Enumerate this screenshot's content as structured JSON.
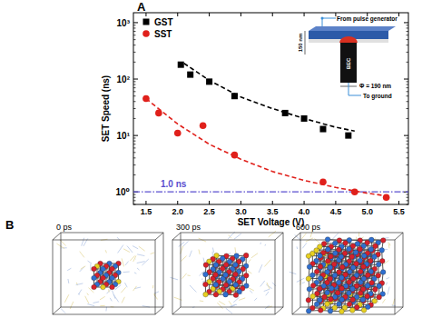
{
  "chart_data": {
    "type": "scatter",
    "title": "A",
    "x_label": "SET Voltage (V)",
    "y_label": "SET Speed (ns)",
    "log": "y",
    "legend": "top-left",
    "xlim": [
      1.3,
      5.65
    ],
    "xticks": [
      1.5,
      {
        "value": 2,
        "label": "2.0"
      },
      2.5,
      {
        "value": 3,
        "label": "3.0"
      },
      3.5,
      {
        "value": 4,
        "label": "4.0"
      },
      4.5,
      {
        "value": 5,
        "label": "5.0"
      },
      5.5
    ],
    "ylim": [
      0.6,
      1500
    ],
    "yticks": [
      {
        "value": 1,
        "label": "10⁰"
      },
      {
        "value": 10,
        "label": "10¹"
      },
      {
        "value": 100,
        "label": "10²"
      },
      {
        "value": 1000,
        "label": "10³"
      }
    ],
    "series": [
      {
        "name": "GST",
        "color": "#000000",
        "marker": "square",
        "x": [
          2.05,
          2.2,
          2.5,
          2.9,
          3.7,
          4.0,
          4.3,
          4.7
        ],
        "values": [
          180,
          120,
          90,
          50,
          25,
          20,
          13,
          10
        ]
      },
      {
        "name": "SST",
        "color": "#e0201b",
        "marker": "circle",
        "x": [
          1.5,
          1.7,
          2.0,
          2.4,
          2.9,
          4.3,
          4.8,
          5.3
        ],
        "values": [
          45,
          25,
          11,
          15,
          4.5,
          1.5,
          1.0,
          0.8
        ]
      },
      {
        "type": "line",
        "line_style": "dashed",
        "color": "#000000",
        "x": [
          2.1,
          2.5,
          3.0,
          3.5,
          4.0,
          4.5,
          4.8
        ],
        "values": [
          190,
          95,
          48,
          30,
          20,
          14,
          12
        ]
      },
      {
        "type": "line",
        "line_style": "dashed",
        "color": "#e0201b",
        "x": [
          1.5,
          2.0,
          2.5,
          3.0,
          3.5,
          4.0,
          4.5,
          5.0,
          5.3
        ],
        "values": [
          45,
          16,
          7,
          3.8,
          2.3,
          1.6,
          1.2,
          0.95,
          0.85
        ]
      }
    ],
    "reference_lines": [
      {
        "value": 1,
        "label": "1.0 ns",
        "color": "#5b4fcf",
        "line_style": "dashdot"
      }
    ],
    "inset": {
      "labels": [
        "From pulse generator",
        "150 nm",
        "BEC",
        "Φ = 190 nm",
        "To ground"
      ]
    }
  },
  "panel_b": {
    "label": "B",
    "snapshots": [
      "0 ps",
      "300 ps",
      "600 ps"
    ]
  }
}
